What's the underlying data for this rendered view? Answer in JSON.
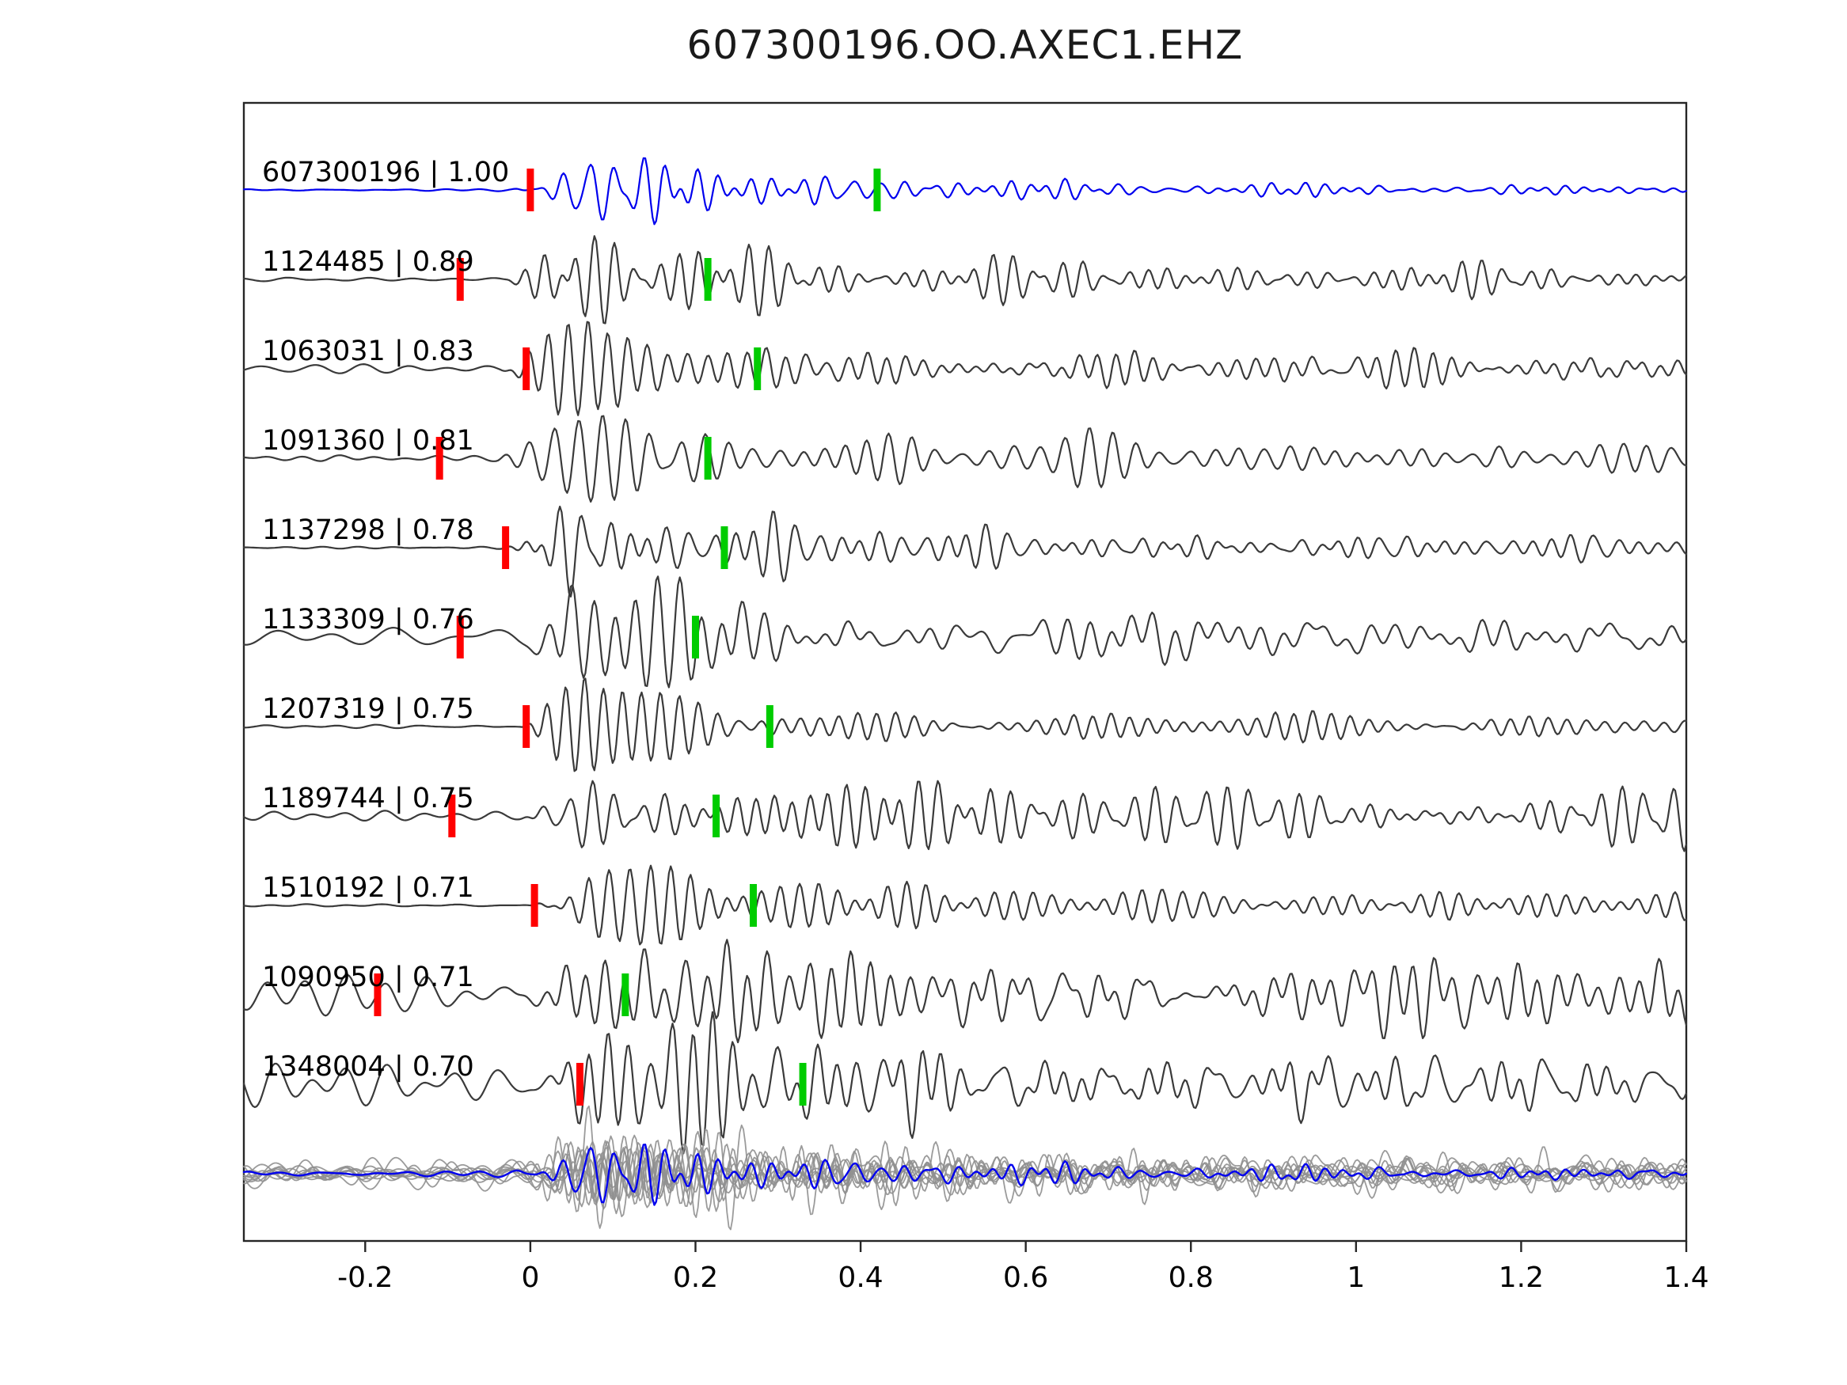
{
  "title": "607300196.OO.AXEC1.EHZ",
  "chart_data": {
    "type": "line",
    "subtype": "seismogram_template_match",
    "title": "607300196.OO.AXEC1.EHZ",
    "xlabel": "",
    "ylabel": "",
    "xlim": [
      -0.347,
      1.4
    ],
    "x_ticks": [
      -0.2,
      0,
      0.2,
      0.4,
      0.6,
      0.8,
      1,
      1.2,
      1.4
    ],
    "x_tick_labels": [
      "-0.2",
      "0",
      "0.2",
      "0.4",
      "0.6",
      "0.8",
      "1",
      "1.2",
      "1.4"
    ],
    "grid": false,
    "legend": "none",
    "colors": {
      "template_trace": "#0000ee",
      "detection_trace": "#3a3a3a",
      "stack_trace": "#909090",
      "red_pick": "#ff0000",
      "green_pick": "#00cc00",
      "axis": "#262626",
      "text": "#000000"
    },
    "traces": [
      {
        "id": "607300196",
        "correlation": "1.00",
        "label": "607300196 | 1.00",
        "color": "template",
        "red_pick": 0.0,
        "green_pick": 0.42,
        "pre_noise": 0.02,
        "peak_amp": 1.0,
        "tail_level": 0.15
      },
      {
        "id": "1124485",
        "correlation": "0.89",
        "label": "1124485 | 0.89",
        "color": "detection",
        "red_pick": -0.085,
        "green_pick": 0.215,
        "pre_noise": 0.03,
        "peak_amp": 1.0,
        "tail_level": 0.3
      },
      {
        "id": "1063031",
        "correlation": "0.83",
        "label": "1063031 | 0.83",
        "color": "detection",
        "red_pick": -0.005,
        "green_pick": 0.275,
        "pre_noise": 0.08,
        "peak_amp": 1.0,
        "tail_level": 0.28
      },
      {
        "id": "1091360",
        "correlation": "0.81",
        "label": "1091360 | 0.81",
        "color": "detection",
        "red_pick": -0.11,
        "green_pick": 0.215,
        "pre_noise": 0.05,
        "peak_amp": 1.05,
        "tail_level": 0.33
      },
      {
        "id": "1137298",
        "correlation": "0.78",
        "label": "1137298 | 0.78",
        "color": "detection",
        "red_pick": -0.03,
        "green_pick": 0.235,
        "pre_noise": 0.04,
        "peak_amp": 0.95,
        "tail_level": 0.28
      },
      {
        "id": "1133309",
        "correlation": "0.76",
        "label": "1133309 | 0.76",
        "color": "detection",
        "red_pick": -0.085,
        "green_pick": 0.2,
        "pre_noise": 0.2,
        "peak_amp": 0.95,
        "tail_level": 0.38
      },
      {
        "id": "1207319",
        "correlation": "0.75",
        "label": "1207319 | 0.75",
        "color": "detection",
        "red_pick": -0.005,
        "green_pick": 0.29,
        "pre_noise": 0.03,
        "peak_amp": 1.0,
        "tail_level": 0.28
      },
      {
        "id": "1189744",
        "correlation": "0.75",
        "label": "1189744 | 0.75",
        "color": "detection",
        "red_pick": -0.095,
        "green_pick": 0.225,
        "pre_noise": 0.08,
        "peak_amp": 0.9,
        "tail_level": 0.6
      },
      {
        "id": "1510192",
        "correlation": "0.71",
        "label": "1510192 | 0.71",
        "color": "detection",
        "red_pick": 0.005,
        "green_pick": 0.27,
        "pre_noise": 0.02,
        "peak_amp": 1.05,
        "tail_level": 0.32
      },
      {
        "id": "1090950",
        "correlation": "0.71",
        "label": "1090950 | 0.71",
        "color": "detection",
        "red_pick": -0.185,
        "green_pick": 0.115,
        "pre_noise": 0.33,
        "peak_amp": 0.95,
        "tail_level": 0.55
      },
      {
        "id": "1348004",
        "correlation": "0.70",
        "label": "1348004 | 0.70",
        "color": "detection",
        "red_pick": 0.06,
        "green_pick": 0.33,
        "pre_noise": 0.35,
        "peak_amp": 1.05,
        "tail_level": 0.42
      }
    ],
    "stack": {
      "description": "all detection waveforms overplotted with template overlay",
      "n_gray_traces": 10,
      "overlay": "template"
    }
  }
}
